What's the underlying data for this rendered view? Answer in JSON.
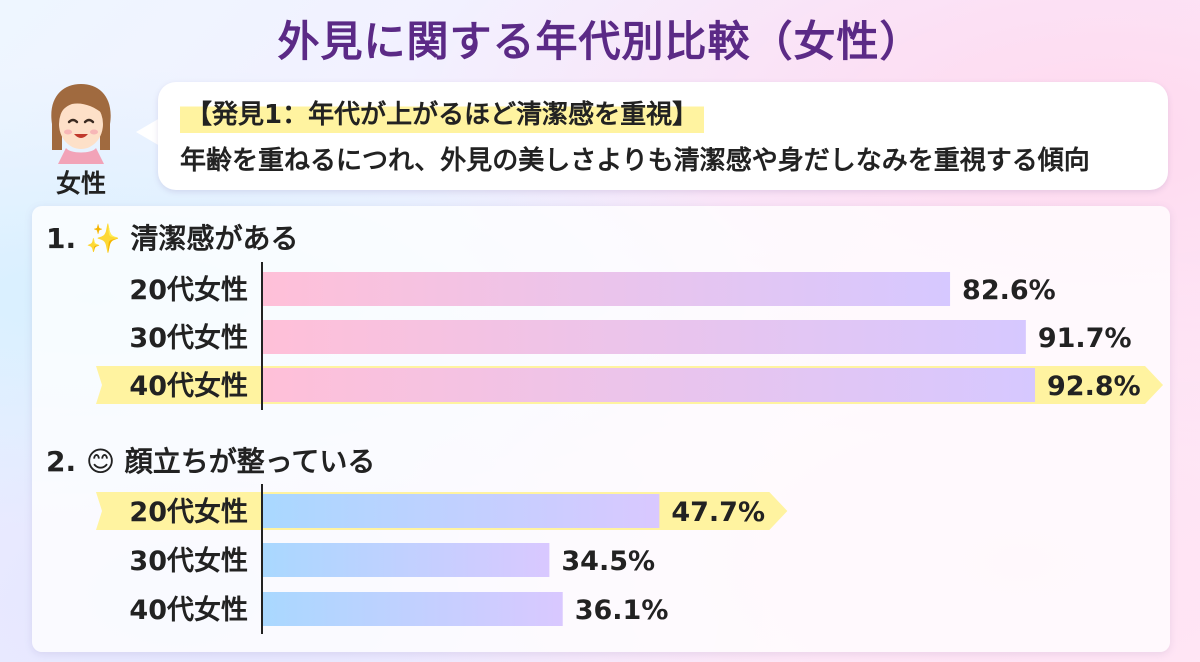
{
  "header": {
    "title": "外見に関する年代別比較（女性）"
  },
  "speaker": {
    "label": "女性",
    "icon": "smiling-woman-icon"
  },
  "finding": {
    "title": "【発見1：年代が上がるほど清潔感を重視】",
    "body": "年齢を重ねるにつれ、外見の美しさよりも清潔感や身だしなみを重視する傾向"
  },
  "colors": {
    "title": "#5b2a86",
    "bar1_start": "#ffc0d8",
    "bar1_end": "#d6c8ff",
    "bar2_start": "#a9d8ff",
    "bar2_end": "#d9c8ff",
    "highlight": "#fff3a0"
  },
  "chart_data": [
    {
      "type": "bar",
      "orientation": "horizontal",
      "title": "1. ✨ 清潔感がある",
      "title_icon": "sparkles-icon",
      "categories": [
        "20代女性",
        "30代女性",
        "40代女性"
      ],
      "values": [
        82.6,
        91.7,
        92.8
      ],
      "value_labels": [
        "82.6%",
        "91.7%",
        "92.8%"
      ],
      "highlighted": [
        false,
        false,
        true
      ],
      "xlim": [
        0,
        100
      ]
    },
    {
      "type": "bar",
      "orientation": "horizontal",
      "title": "2. 😊 顔立ちが整っている",
      "title_icon": "smiling-face-icon",
      "categories": [
        "20代女性",
        "30代女性",
        "40代女性"
      ],
      "values": [
        47.7,
        34.5,
        36.1
      ],
      "value_labels": [
        "47.7%",
        "34.5%",
        "36.1%"
      ],
      "highlighted": [
        true,
        false,
        false
      ],
      "xlim": [
        0,
        100
      ]
    }
  ]
}
